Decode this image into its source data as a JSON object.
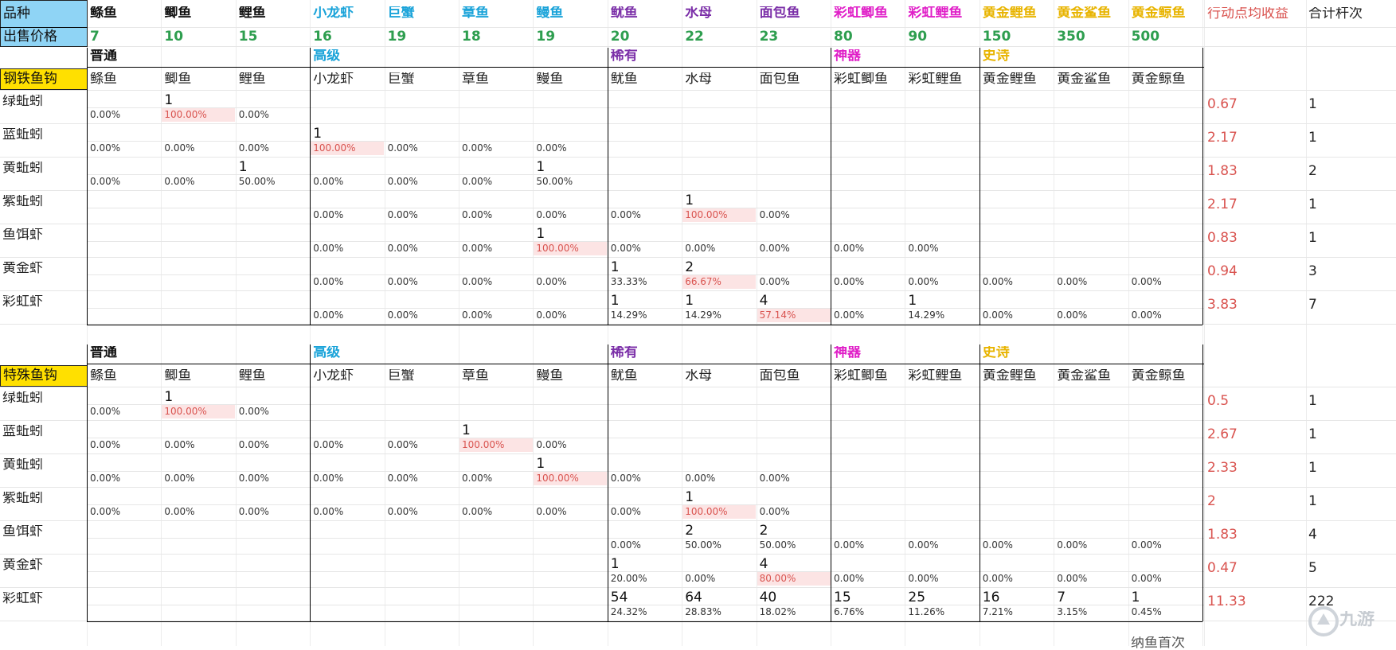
{
  "colors": {
    "common": "#111111",
    "advanced": "#1aa3d9",
    "rare": "#7b2fa8",
    "artifact": "#e020c8",
    "epic": "#e8b400",
    "price": "#2e9e4f",
    "avg": "#d9534f",
    "pink_fill": "#fce4e4",
    "blue_fill": "#8fd4f5",
    "yellow_fill": "#ffe000"
  },
  "header": {
    "name_label": "品种",
    "price_label": "出售价格",
    "fish": [
      {
        "name": "鲦鱼",
        "price": "7",
        "tier": "common"
      },
      {
        "name": "鲫鱼",
        "price": "10",
        "tier": "common"
      },
      {
        "name": "鲤鱼",
        "price": "15",
        "tier": "common"
      },
      {
        "name": "小龙虾",
        "price": "16",
        "tier": "advanced"
      },
      {
        "name": "巨蟹",
        "price": "19",
        "tier": "advanced"
      },
      {
        "name": "章鱼",
        "price": "18",
        "tier": "advanced"
      },
      {
        "name": "鳗鱼",
        "price": "19",
        "tier": "advanced"
      },
      {
        "name": "鱿鱼",
        "price": "20",
        "tier": "rare"
      },
      {
        "name": "水母",
        "price": "22",
        "tier": "rare"
      },
      {
        "name": "面包鱼",
        "price": "23",
        "tier": "rare"
      },
      {
        "name": "彩虹鲫鱼",
        "price": "80",
        "tier": "artifact"
      },
      {
        "name": "彩虹鲤鱼",
        "price": "90",
        "tier": "artifact"
      },
      {
        "name": "黄金鲤鱼",
        "price": "150",
        "tier": "epic"
      },
      {
        "name": "黄金鲨鱼",
        "price": "350",
        "tier": "epic"
      },
      {
        "name": "黄金鲸鱼",
        "price": "500",
        "tier": "epic"
      }
    ],
    "avg_label": "行动点均收益",
    "total_label": "合计杆次"
  },
  "tiers": [
    {
      "label": "普通",
      "start": 0,
      "tier": "common"
    },
    {
      "label": "高级",
      "start": 3,
      "tier": "advanced"
    },
    {
      "label": "稀有",
      "start": 7,
      "tier": "rare"
    },
    {
      "label": "神器",
      "start": 10,
      "tier": "artifact"
    },
    {
      "label": "史诗",
      "start": 12,
      "tier": "epic"
    }
  ],
  "column_names": [
    "鲦鱼",
    "鲫鱼",
    "鲤鱼",
    "小龙虾",
    "巨蟹",
    "章鱼",
    "鳗鱼",
    "鱿鱼",
    "水母",
    "面包鱼",
    "彩虹鲫鱼",
    "彩虹鲤鱼",
    "黄金鲤鱼",
    "黄金鲨鱼",
    "黄金鲸鱼"
  ],
  "sections": [
    {
      "hook": "钢铁鱼钩",
      "rows": [
        {
          "label": "绿蚯蚓",
          "counts": {
            "1": "1"
          },
          "pcts": {
            "0": "0.00%",
            "1": "100.00%",
            "2": "0.00%"
          },
          "hi": [
            1
          ],
          "avg": "0.67",
          "total": "1"
        },
        {
          "label": "蓝蚯蚓",
          "counts": {
            "3": "1"
          },
          "pcts": {
            "0": "0.00%",
            "1": "0.00%",
            "2": "0.00%",
            "3": "100.00%",
            "4": "0.00%",
            "5": "0.00%",
            "6": "0.00%"
          },
          "hi": [
            3
          ],
          "avg": "2.17",
          "total": "1"
        },
        {
          "label": "黄蚯蚓",
          "counts": {
            "2": "1",
            "6": "1"
          },
          "pcts": {
            "0": "0.00%",
            "1": "0.00%",
            "2": "50.00%",
            "3": "0.00%",
            "4": "0.00%",
            "5": "0.00%",
            "6": "50.00%"
          },
          "hi": [],
          "avg": "1.83",
          "total": "2"
        },
        {
          "label": "紫蚯蚓",
          "counts": {
            "8": "1"
          },
          "pcts": {
            "3": "0.00%",
            "4": "0.00%",
            "5": "0.00%",
            "6": "0.00%",
            "7": "0.00%",
            "8": "100.00%",
            "9": "0.00%"
          },
          "hi": [
            8
          ],
          "avg": "2.17",
          "total": "1"
        },
        {
          "label": "鱼饵虾",
          "counts": {
            "6": "1"
          },
          "pcts": {
            "3": "0.00%",
            "4": "0.00%",
            "5": "0.00%",
            "6": "100.00%",
            "7": "0.00%",
            "8": "0.00%",
            "9": "0.00%",
            "10": "0.00%",
            "11": "0.00%"
          },
          "hi": [
            6
          ],
          "avg": "0.83",
          "total": "1"
        },
        {
          "label": "黄金虾",
          "counts": {
            "7": "1",
            "8": "2"
          },
          "pcts": {
            "3": "0.00%",
            "4": "0.00%",
            "5": "0.00%",
            "6": "0.00%",
            "7": "33.33%",
            "8": "66.67%",
            "9": "0.00%",
            "10": "0.00%",
            "11": "0.00%",
            "12": "0.00%",
            "13": "0.00%",
            "14": "0.00%"
          },
          "hi": [
            8
          ],
          "avg": "0.94",
          "total": "3"
        },
        {
          "label": "彩虹虾",
          "counts": {
            "7": "1",
            "8": "1",
            "9": "4",
            "11": "1"
          },
          "pcts": {
            "3": "0.00%",
            "4": "0.00%",
            "5": "0.00%",
            "6": "0.00%",
            "7": "14.29%",
            "8": "14.29%",
            "9": "57.14%",
            "10": "0.00%",
            "11": "14.29%",
            "12": "0.00%",
            "13": "0.00%",
            "14": "0.00%"
          },
          "hi": [
            9
          ],
          "avg": "3.83",
          "total": "7"
        }
      ]
    },
    {
      "hook": "特殊鱼钩",
      "rows": [
        {
          "label": "绿蚯蚓",
          "counts": {
            "1": "1"
          },
          "pcts": {
            "0": "0.00%",
            "1": "100.00%",
            "2": "0.00%"
          },
          "hi": [
            1
          ],
          "avg": "0.5",
          "total": "1"
        },
        {
          "label": "蓝蚯蚓",
          "counts": {
            "5": "1"
          },
          "pcts": {
            "0": "0.00%",
            "1": "0.00%",
            "2": "0.00%",
            "3": "0.00%",
            "4": "0.00%",
            "5": "100.00%",
            "6": "0.00%"
          },
          "hi": [
            5
          ],
          "avg": "2.67",
          "total": "1"
        },
        {
          "label": "黄蚯蚓",
          "counts": {
            "6": "1"
          },
          "pcts": {
            "0": "0.00%",
            "1": "0.00%",
            "2": "0.00%",
            "3": "0.00%",
            "4": "0.00%",
            "5": "0.00%",
            "6": "100.00%",
            "7": "0.00%",
            "8": "0.00%",
            "9": "0.00%"
          },
          "hi": [
            6
          ],
          "avg": "2.33",
          "total": "1"
        },
        {
          "label": "紫蚯蚓",
          "counts": {
            "8": "1"
          },
          "pcts": {
            "0": "0.00%",
            "1": "0.00%",
            "2": "0.00%",
            "3": "0.00%",
            "4": "0.00%",
            "5": "0.00%",
            "6": "0.00%",
            "7": "0.00%",
            "8": "100.00%",
            "9": "0.00%"
          },
          "hi": [
            8
          ],
          "avg": "2",
          "total": "1"
        },
        {
          "label": "鱼饵虾",
          "counts": {
            "8": "2",
            "9": "2"
          },
          "pcts": {
            "7": "0.00%",
            "8": "50.00%",
            "9": "50.00%",
            "10": "0.00%",
            "11": "0.00%",
            "12": "0.00%",
            "13": "0.00%",
            "14": "0.00%"
          },
          "hi": [],
          "avg": "1.83",
          "total": "4"
        },
        {
          "label": "黄金虾",
          "counts": {
            "7": "1",
            "9": "4"
          },
          "pcts": {
            "7": "20.00%",
            "8": "0.00%",
            "9": "80.00%",
            "10": "0.00%",
            "11": "0.00%",
            "12": "0.00%",
            "13": "0.00%",
            "14": "0.00%"
          },
          "hi": [
            9
          ],
          "avg": "0.47",
          "total": "5"
        },
        {
          "label": "彩虹虾",
          "counts": {
            "7": "54",
            "8": "64",
            "9": "40",
            "10": "15",
            "11": "25",
            "12": "16",
            "13": "7",
            "14": "1"
          },
          "pcts": {
            "7": "24.32%",
            "8": "28.83%",
            "9": "18.02%",
            "10": "6.76%",
            "11": "11.26%",
            "12": "7.21%",
            "13": "3.15%",
            "14": "0.45%"
          },
          "hi": [],
          "avg": "11.33",
          "total": "222"
        }
      ]
    }
  ],
  "footer_fragment": "纳鱼首次",
  "watermark": "九游"
}
